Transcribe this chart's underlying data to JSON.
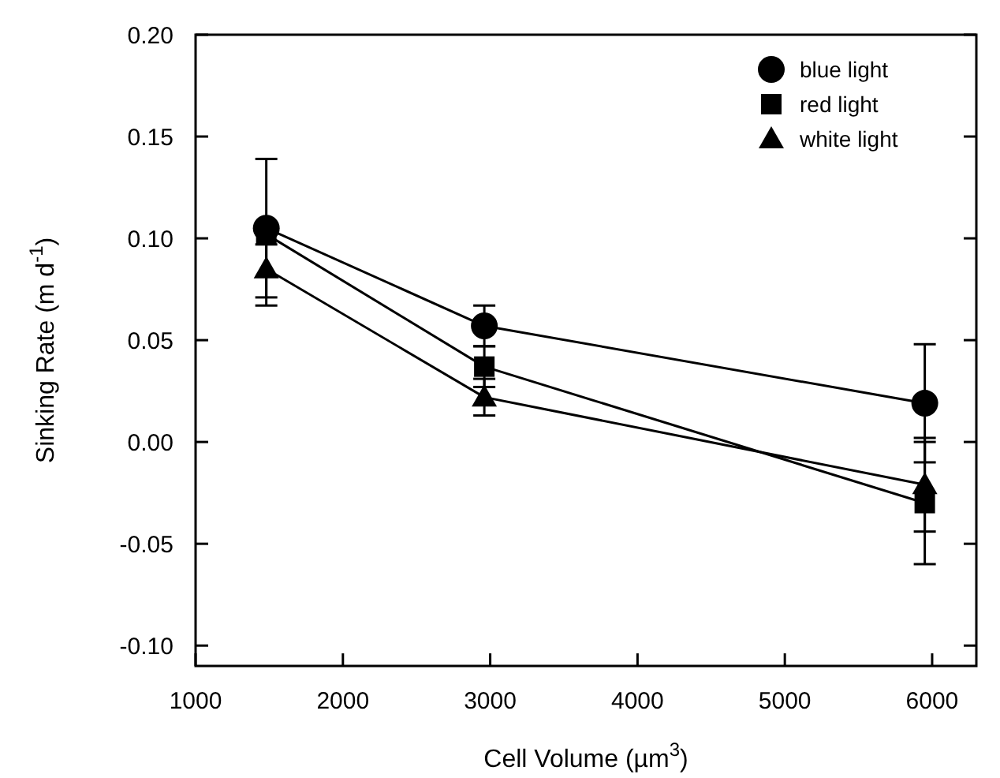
{
  "chart_data": {
    "type": "line",
    "xlabel": "Cell Volume (µm$^{3}$)",
    "ylabel": "Sinking Rate (m d$^{-1}$)",
    "x": [
      1480,
      2960,
      5950
    ],
    "series": [
      {
        "name": "blue light",
        "color": "#000000",
        "marker": "circle",
        "values": [
          0.105,
          0.057,
          0.019
        ],
        "errors": [
          0.034,
          0.01,
          0.029
        ]
      },
      {
        "name": "red light",
        "color": "#000000",
        "marker": "square",
        "values": [
          0.102,
          0.037,
          -0.03
        ],
        "errors": [
          0.005,
          0.01,
          0.03
        ]
      },
      {
        "name": "white light",
        "color": "#000000",
        "marker": "triangle",
        "values": [
          0.085,
          0.022,
          -0.021
        ],
        "errors": [
          0.018,
          0.009,
          0.023
        ]
      }
    ],
    "xlim": [
      1000,
      6300
    ],
    "xticks": [
      1000,
      2000,
      3000,
      4000,
      5000,
      6000
    ],
    "ylim": [
      -0.11,
      0.2
    ],
    "yticks": [
      {
        "value": -0.1,
        "label": "-0.10"
      },
      {
        "value": -0.05,
        "label": "-0.05"
      },
      {
        "value": 0,
        "label": "0.00"
      },
      {
        "value": 0.05,
        "label": "0.05"
      },
      {
        "value": 0.1,
        "label": "0.10"
      },
      {
        "value": 0.15,
        "label": "0.15"
      },
      {
        "value": 0.2,
        "label": "0.20"
      }
    ],
    "grid": false,
    "legend": "top right",
    "line_style": "solid"
  }
}
